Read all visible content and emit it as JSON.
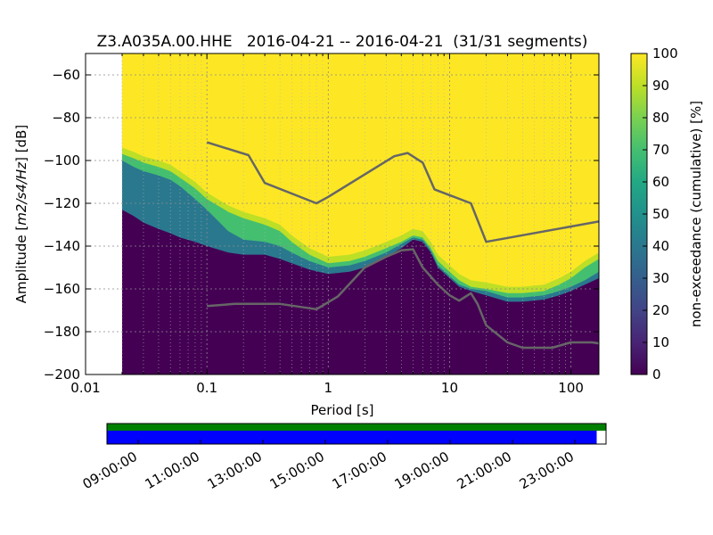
{
  "chart_data": {
    "type": "heatmap",
    "title": "Z3.A035A.00.HHE   2016-04-21 -- 2016-04-21  (31/31 segments)",
    "xlabel": "Period [s]",
    "ylabel_prefix": "Amplitude [",
    "ylabel_units": "m",
    "ylabel_rest": "2/s4/Hz",
    "ylabel_suffix": "] [dB]",
    "x_scale": "log",
    "xlim": [
      0.01,
      170
    ],
    "ylim": [
      -200,
      -50
    ],
    "x_ticks": [
      {
        "value": 0.01,
        "label": "0.01"
      },
      {
        "value": 0.1,
        "label": "0.1"
      },
      {
        "value": 1,
        "label": "1"
      },
      {
        "value": 10,
        "label": "10"
      },
      {
        "value": 100,
        "label": "100"
      }
    ],
    "y_ticks": [
      {
        "value": -60,
        "label": "−60"
      },
      {
        "value": -80,
        "label": "−80"
      },
      {
        "value": -100,
        "label": "−100"
      },
      {
        "value": -120,
        "label": "−120"
      },
      {
        "value": -140,
        "label": "−140"
      },
      {
        "value": -160,
        "label": "−160"
      },
      {
        "value": -180,
        "label": "−180"
      },
      {
        "value": -200,
        "label": "−200"
      }
    ],
    "grid": true,
    "data_start_period": 0.02,
    "colormap": "viridis",
    "colorbar": {
      "label": "non-exceedance (cumulative) [%]",
      "range": [
        0,
        100
      ],
      "ticks": [
        "0",
        "10",
        "20",
        "30",
        "40",
        "50",
        "60",
        "70",
        "80",
        "90",
        "100"
      ]
    },
    "heatmap_bands": {
      "period": [
        0.02,
        0.025,
        0.03,
        0.04,
        0.05,
        0.06,
        0.08,
        0.1,
        0.15,
        0.2,
        0.3,
        0.4,
        0.5,
        0.7,
        1.0,
        1.5,
        2.0,
        3.0,
        4.0,
        5.0,
        6.0,
        7.0,
        8.0,
        10.0,
        12.0,
        15.0,
        20.0,
        30.0,
        40.0,
        60.0,
        80.0,
        100.0,
        130.0,
        170.0
      ],
      "p10": [
        -123,
        -126,
        -129,
        -132,
        -134,
        -136,
        -138,
        -140,
        -143,
        -144,
        -144,
        -146,
        -148,
        -151,
        -153,
        -152,
        -150,
        -145,
        -141,
        -137,
        -138,
        -143,
        -150,
        -155,
        -159,
        -161,
        -163,
        -166,
        -166,
        -165,
        -163,
        -161,
        -158,
        -155
      ],
      "p60": [
        -100,
        -103,
        -105,
        -107,
        -109,
        -112,
        -118,
        -123,
        -133,
        -137,
        -138,
        -140,
        -143,
        -147,
        -150,
        -149,
        -147,
        -143,
        -139,
        -136,
        -137,
        -142,
        -149,
        -154,
        -158,
        -160,
        -161,
        -164,
        -164,
        -163,
        -161,
        -159,
        -156,
        -152
      ],
      "p85": [
        -97,
        -99,
        -101,
        -103,
        -105,
        -108,
        -113,
        -118,
        -124,
        -127,
        -130,
        -133,
        -138,
        -144,
        -148,
        -147,
        -145,
        -141,
        -138,
        -135,
        -136,
        -141,
        -147,
        -152,
        -156,
        -159,
        -160,
        -162,
        -162,
        -161,
        -158,
        -155,
        -150,
        -146
      ]
    },
    "series": [
      {
        "name": "",
        "color": "#666666",
        "x": [
          0.1,
          0.22,
          0.3,
          0.8,
          1.0,
          3.5,
          4.5,
          6.0,
          7.5,
          15.0,
          20.0,
          170.0
        ],
        "y": [
          -91.5,
          -97.5,
          -110.5,
          -120.0,
          -117.0,
          -98.0,
          -96.5,
          -101.0,
          -113.5,
          -120.0,
          -138.0,
          -128.5
        ]
      },
      {
        "name": "",
        "color": "#666666",
        "x": [
          0.1,
          0.17,
          0.4,
          0.8,
          1.2,
          2.0,
          3.0,
          4.0,
          5.0,
          6.0,
          8.0,
          10.0,
          12.0,
          15.0,
          17.0,
          20.0,
          30.0,
          40.0,
          70.0,
          100.0,
          150.0,
          170.0
        ],
        "y": [
          -168.0,
          -167.0,
          -167.0,
          -169.5,
          -163.5,
          -150.0,
          -145.0,
          -142.0,
          -141.5,
          -150.0,
          -158.0,
          -163.0,
          -165.5,
          -162.0,
          -167.0,
          -177.0,
          -185.0,
          -187.5,
          -187.5,
          -185.0,
          -185.0,
          -185.5
        ]
      }
    ],
    "timeline": {
      "tick_labels": [
        "09:00:00",
        "11:00:00",
        "13:00:00",
        "15:00:00",
        "17:00:00",
        "19:00:00",
        "21:00:00",
        "23:00:00"
      ],
      "start_hour": 8.0,
      "end_hour": 24.0,
      "tick_hours": [
        9,
        11,
        13,
        15,
        17,
        19,
        21,
        23
      ],
      "data_coverage_end_hour": 24.0,
      "selected_coverage_end_hour": 23.7,
      "data_color": "#008000",
      "selected_color": "#0000ff"
    }
  }
}
